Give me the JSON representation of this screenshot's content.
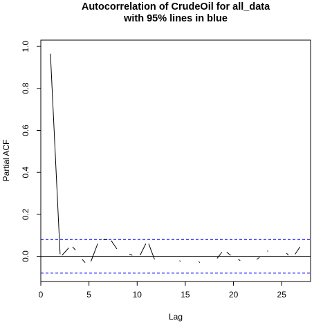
{
  "chart_data": {
    "type": "line",
    "title": "Autocorrelation of CrudeOil for all_data",
    "subtitle": "with 95% lines in blue",
    "xlabel": "Lag",
    "ylabel": "Partial ACF",
    "xlim": [
      0,
      28
    ],
    "ylim": [
      -0.12,
      1.03
    ],
    "xticks": [
      0,
      5,
      10,
      15,
      20,
      25
    ],
    "yticks": [
      0.0,
      0.2,
      0.4,
      0.6,
      0.8,
      1.0
    ],
    "ytick_labels": [
      "0.0",
      "0.2",
      "0.4",
      "0.6",
      "0.8",
      "1.0"
    ],
    "zero_line": 0,
    "confidence_bound": 0.08,
    "confidence_color": "#0000ff",
    "series_color": "#000000",
    "segments": [
      {
        "x": [
          1.0,
          2.0
        ],
        "y": [
          0.965,
          0.01
        ]
      },
      {
        "x": [
          2.2,
          2.9
        ],
        "y": [
          0.005,
          0.04
        ]
      },
      {
        "x": [
          3.3,
          3.6
        ],
        "y": [
          0.045,
          0.03
        ]
      },
      {
        "x": [
          4.3,
          4.6
        ],
        "y": [
          -0.015,
          -0.03
        ]
      },
      {
        "x": [
          5.2,
          5.9
        ],
        "y": [
          -0.025,
          0.06
        ]
      },
      {
        "x": [
          6.5,
          6.9
        ],
        "y": [
          0.08,
          0.08
        ]
      },
      {
        "x": [
          7.3,
          7.9
        ],
        "y": [
          0.075,
          0.035
        ]
      },
      {
        "x": [
          9.2,
          9.5
        ],
        "y": [
          0.01,
          0.005
        ]
      },
      {
        "x": [
          10.3,
          10.9
        ],
        "y": [
          0.005,
          0.06
        ]
      },
      {
        "x": [
          11.2,
          11.8
        ],
        "y": [
          0.06,
          -0.015
        ]
      },
      {
        "x": [
          14.4,
          14.5
        ],
        "y": [
          -0.02,
          -0.025
        ]
      },
      {
        "x": [
          16.4,
          16.5
        ],
        "y": [
          -0.025,
          -0.03
        ]
      },
      {
        "x": [
          18.3,
          18.8
        ],
        "y": [
          -0.01,
          0.02
        ]
      },
      {
        "x": [
          19.3,
          19.7
        ],
        "y": [
          0.02,
          0.005
        ]
      },
      {
        "x": [
          20.5,
          20.7
        ],
        "y": [
          -0.015,
          -0.02
        ]
      },
      {
        "x": [
          22.4,
          22.7
        ],
        "y": [
          -0.015,
          -0.005
        ]
      },
      {
        "x": [
          23.5,
          23.6
        ],
        "y": [
          0.025,
          0.025
        ]
      },
      {
        "x": [
          25.5,
          25.7
        ],
        "y": [
          0.015,
          0.005
        ]
      },
      {
        "x": [
          26.4,
          26.9
        ],
        "y": [
          0.01,
          0.045
        ]
      }
    ]
  }
}
